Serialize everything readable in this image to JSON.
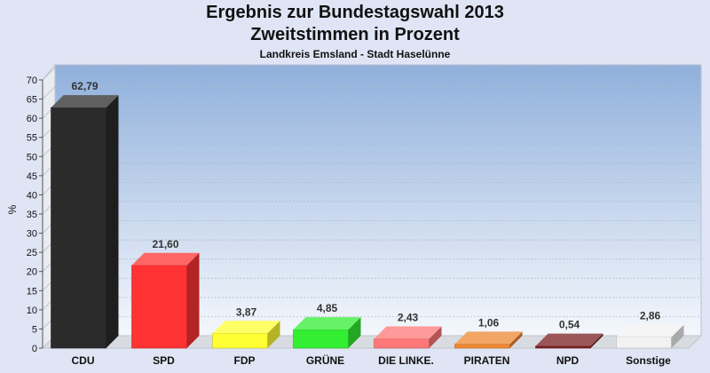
{
  "chart_data": {
    "type": "bar",
    "title": "Ergebnis zur Bundestagswahl 2013",
    "title_line2": "Zweitstimmen in Prozent",
    "subtitle": "Landkreis Emsland - Stadt Haselünne",
    "ylabel": "%",
    "xlabel": "",
    "ylim": [
      0,
      70
    ],
    "yticks": [
      0,
      5,
      10,
      15,
      20,
      25,
      30,
      35,
      40,
      45,
      50,
      55,
      60,
      65,
      70
    ],
    "grid": true,
    "categories": [
      "CDU",
      "SPD",
      "FDP",
      "GRÜNE",
      "DIE LINKE.",
      "PIRATEN",
      "NPD",
      "Sonstige"
    ],
    "values": [
      62.79,
      21.6,
      3.87,
      4.85,
      2.43,
      1.06,
      0.54,
      2.86
    ],
    "value_labels": [
      "62,79",
      "21,60",
      "3,87",
      "4,85",
      "2,43",
      "1,06",
      "0,54",
      "2,86"
    ],
    "colors": [
      "#2b2b2b",
      "#ff3333",
      "#ffff33",
      "#33ee33",
      "#ff7777",
      "#ee8833",
      "#7a1f1f",
      "#f2f2f2"
    ]
  }
}
